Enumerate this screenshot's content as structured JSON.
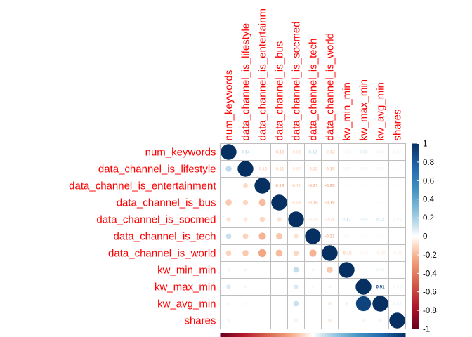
{
  "chart_data": {
    "type": "heatmap",
    "style": "corrplot-circle-upper-numbers",
    "variables": [
      "num_keywords",
      "data_channel_is_lifestyle",
      "data_channel_is_entertainment",
      "data_channel_is_bus",
      "data_channel_is_socmed",
      "data_channel_is_tech",
      "data_channel_is_world",
      "kw_min_min",
      "kw_max_min",
      "kw_avg_min",
      "shares"
    ],
    "column_labels": [
      "num_keywords",
      "data_channel_is_lifestyle",
      "data_channel_is_entertainm",
      "data_channel_is_bus",
      "data_channel_is_socmed",
      "data_channel_is_tech",
      "data_channel_is_world",
      "kw_min_min",
      "kw_max_min",
      "kw_avg_min",
      "shares"
    ],
    "matrix": [
      [
        1.0,
        0.14,
        0.0,
        -0.15,
        -0.08,
        0.12,
        -0.12,
        0.03,
        0.08,
        0.03,
        0.03
      ],
      [
        0.14,
        1.0,
        -0.1,
        -0.11,
        -0.07,
        -0.12,
        -0.15,
        0.03,
        0.03,
        0.02,
        0.01
      ],
      [
        0.0,
        -0.1,
        1.0,
        -0.19,
        -0.11,
        -0.21,
        -0.25,
        0.01,
        -0.01,
        -0.01,
        -0.01
      ],
      [
        -0.15,
        -0.11,
        -0.19,
        1.0,
        -0.08,
        -0.16,
        -0.19,
        0.0,
        0.0,
        -0.01,
        0.0
      ],
      [
        -0.08,
        -0.07,
        -0.11,
        -0.08,
        1.0,
        -0.08,
        -0.11,
        0.13,
        0.08,
        0.12,
        0.04
      ],
      [
        0.12,
        -0.12,
        -0.21,
        -0.16,
        -0.08,
        1.0,
        -0.21,
        0.03,
        0.02,
        0.01,
        0.0
      ],
      [
        -0.12,
        -0.15,
        -0.25,
        -0.19,
        -0.11,
        -0.21,
        1.0,
        -0.15,
        -0.03,
        -0.05,
        -0.05
      ],
      [
        0.03,
        0.03,
        0.01,
        0.0,
        0.13,
        0.03,
        -0.15,
        1.0,
        0.0,
        0.04,
        0.0
      ],
      [
        0.08,
        0.03,
        -0.01,
        0.0,
        0.08,
        0.02,
        -0.03,
        0.0,
        1.0,
        0.91,
        0.03
      ],
      [
        0.03,
        0.02,
        -0.01,
        -0.01,
        0.12,
        0.01,
        -0.05,
        0.04,
        0.91,
        1.0,
        0.04
      ],
      [
        0.03,
        0.01,
        -0.01,
        0.0,
        0.04,
        0.0,
        -0.05,
        0.0,
        0.03,
        0.04,
        1.0
      ]
    ],
    "colorbar": {
      "ticks": [
        "1",
        "0.8",
        "0.6",
        "0.4",
        "0.2",
        "0",
        "-0.2",
        "-0.4",
        "-0.6",
        "-0.8",
        "-1"
      ],
      "range": [
        -1,
        1
      ],
      "colors": {
        "-1": "#67001F",
        "-0.75": "#B2182B",
        "-0.5": "#D6604D",
        "-0.25": "#F4A582",
        "-0.1": "#FDDBC7",
        "0": "#FFFFFF",
        "0.1": "#D1E5F0",
        "0.25": "#92C5DE",
        "0.5": "#4393C3",
        "0.75": "#2166AC",
        "1": "#053061"
      }
    },
    "label_color": "#FF0000",
    "grid_color": "#BEBEBE"
  }
}
